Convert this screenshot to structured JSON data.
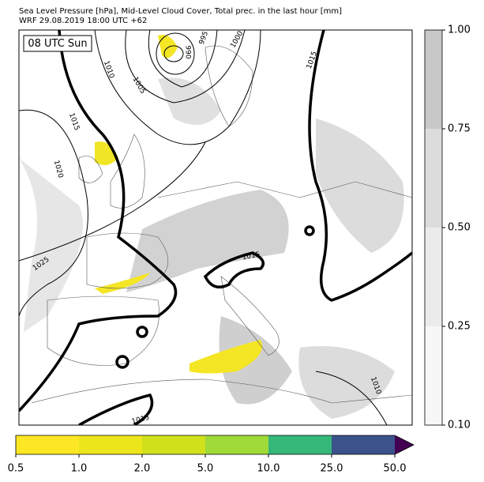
{
  "header": {
    "title": "Sea Level Pressure [hPa], Mid-Level Cloud Cover, Total prec. in the last hour [mm]",
    "subtitle": "WRF 29.08.2019 18:00 UTC +62"
  },
  "map": {
    "time_label": "08 UTC Sun",
    "contour_labels": [
      "995",
      "990",
      "1000",
      "1010",
      "1005",
      "1015",
      "1015",
      "1020",
      "1025",
      "1015",
      "1015",
      "1010"
    ]
  },
  "cloud_colorbar": {
    "ticks": [
      "0.10",
      "0.25",
      "0.50",
      "0.75",
      "1.00"
    ]
  },
  "precip_colorbar": {
    "ticks": [
      "0.5",
      "1.0",
      "2.0",
      "5.0",
      "10.0",
      "25.0",
      "50.0"
    ]
  }
}
